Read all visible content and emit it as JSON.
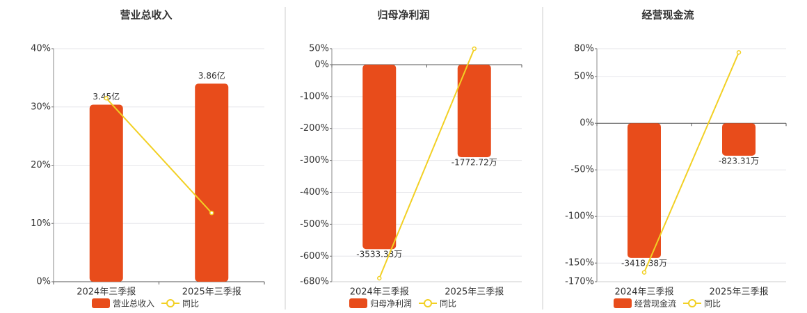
{
  "chart_data": [
    {
      "type": "bar",
      "title": "营业总收入",
      "categories": [
        "2024年三季报",
        "2025年三季报"
      ],
      "series": [
        {
          "name": "营业总收入",
          "type": "bar",
          "color": "#e84c1b",
          "values": [
            3.45,
            3.86
          ],
          "value_labels": [
            "3.45亿",
            "3.86亿"
          ]
        },
        {
          "name": "同比",
          "type": "line",
          "color": "#f2d024",
          "values": [
            31.5,
            11.8
          ]
        }
      ],
      "ylim": [
        0,
        40
      ],
      "yticks": [
        {
          "value": 0,
          "label": "0%"
        },
        {
          "value": 10,
          "label": "10%"
        },
        {
          "value": 20,
          "label": "20%"
        },
        {
          "value": 30,
          "label": "30%"
        },
        {
          "value": 40,
          "label": "40%"
        }
      ],
      "grid": true
    },
    {
      "type": "bar",
      "title": "归母净利润",
      "categories": [
        "2024年三季报",
        "2025年三季报"
      ],
      "series": [
        {
          "name": "归母净利润",
          "type": "bar",
          "color": "#e84c1b",
          "values": [
            -3533.33,
            -1772.72
          ],
          "value_labels": [
            "-3533.33万",
            "-1772.72万"
          ]
        },
        {
          "name": "同比",
          "type": "line",
          "color": "#f2d024",
          "values": [
            -669,
            50
          ]
        }
      ],
      "ylim": [
        -680,
        50
      ],
      "yticks": [
        {
          "value": 50,
          "label": "50%"
        },
        {
          "value": 0,
          "label": "0%"
        },
        {
          "value": -100,
          "label": "-100%"
        },
        {
          "value": -200,
          "label": "-200%"
        },
        {
          "value": -300,
          "label": "-300%"
        },
        {
          "value": -400,
          "label": "-400%"
        },
        {
          "value": -500,
          "label": "-500%"
        },
        {
          "value": -600,
          "label": "-600%"
        },
        {
          "value": -680,
          "label": "-680%"
        }
      ],
      "grid": true
    },
    {
      "type": "bar",
      "title": "经营现金流",
      "categories": [
        "2024年三季报",
        "2025年三季报"
      ],
      "series": [
        {
          "name": "经营现金流",
          "type": "bar",
          "color": "#e84c1b",
          "values": [
            -3418.38,
            -823.31
          ],
          "value_labels": [
            "-3418.38万",
            "-823.31万"
          ]
        },
        {
          "name": "同比",
          "type": "line",
          "color": "#f2d024",
          "values": [
            -160,
            76
          ]
        }
      ],
      "ylim": [
        -170,
        80
      ],
      "yticks": [
        {
          "value": 80,
          "label": "80%"
        },
        {
          "value": 50,
          "label": "50%"
        },
        {
          "value": 0,
          "label": "0%"
        },
        {
          "value": -50,
          "label": "-50%"
        },
        {
          "value": -100,
          "label": "-100%"
        },
        {
          "value": -150,
          "label": "-150%"
        },
        {
          "value": -170,
          "label": "-170%"
        }
      ],
      "grid": true
    }
  ]
}
